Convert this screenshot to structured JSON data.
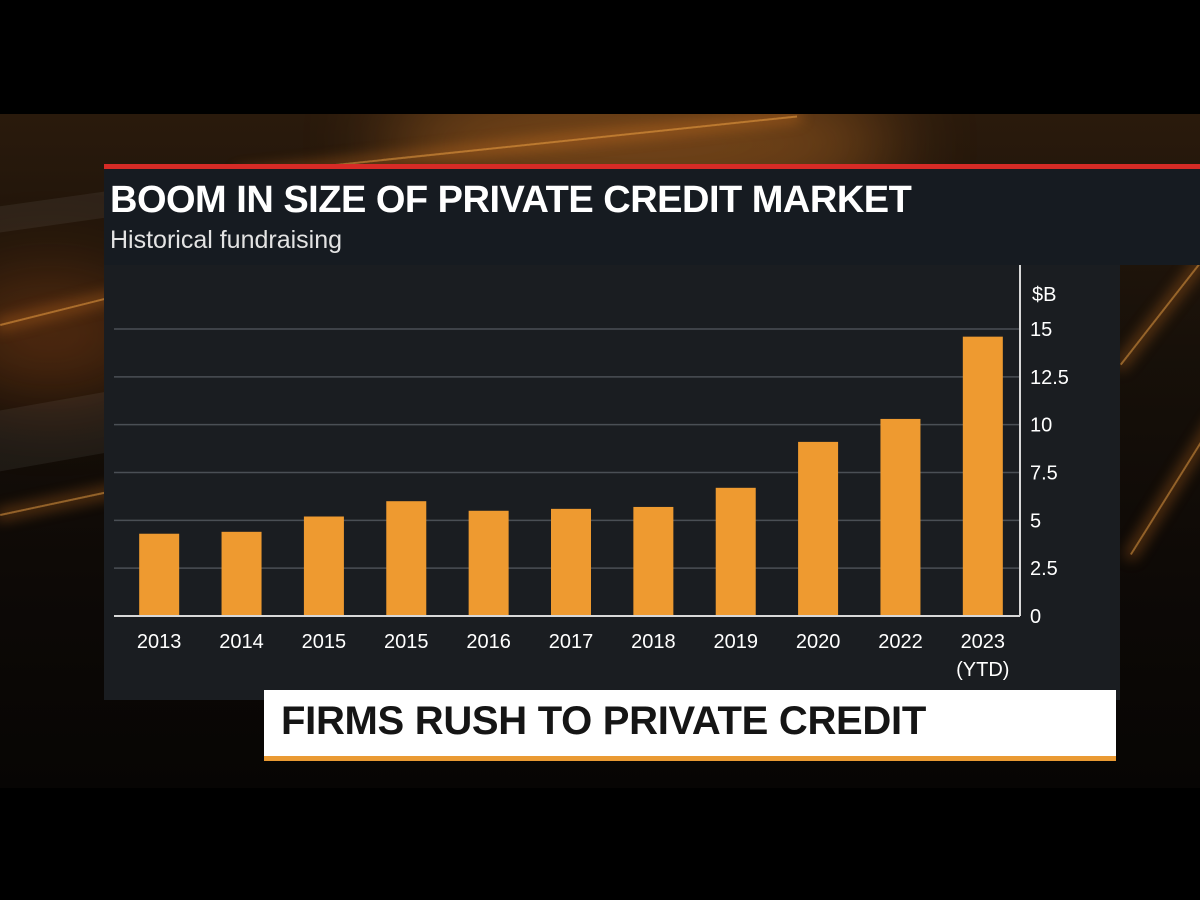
{
  "headline": "BOOM IN SIZE OF PRIVATE CREDIT MARKET",
  "subheadline": "Historical fundraising",
  "lower_third": "FIRMS RUSH TO PRIVATE CREDIT",
  "colors": {
    "bar": "#ee9a30",
    "accent_red": "#d62b26",
    "lower_third_underline": "#ea9a33"
  },
  "chart_data": {
    "type": "bar",
    "title": "BOOM IN SIZE OF PRIVATE CREDIT MARKET",
    "subtitle": "Historical fundraising",
    "unit_label": "$B",
    "categories": [
      "2013",
      "2014",
      "2015",
      "2015",
      "2016",
      "2017",
      "2018",
      "2019",
      "2020",
      "2022",
      "2023"
    ],
    "category_sublabels": [
      "",
      "",
      "",
      "",
      "",
      "",
      "",
      "",
      "",
      "",
      "(YTD)"
    ],
    "values": [
      4.3,
      4.4,
      5.2,
      6.0,
      5.5,
      5.6,
      5.7,
      6.7,
      9.1,
      10.3,
      14.6
    ],
    "ylim": [
      0,
      15
    ],
    "yticks": [
      0,
      2.5,
      5,
      7.5,
      10,
      12.5,
      15
    ],
    "ytick_labels": [
      "0",
      "2.5",
      "5",
      "7.5",
      "10",
      "12.5",
      "15"
    ],
    "y_axis_position": "right",
    "grid": true,
    "legend": "none"
  }
}
